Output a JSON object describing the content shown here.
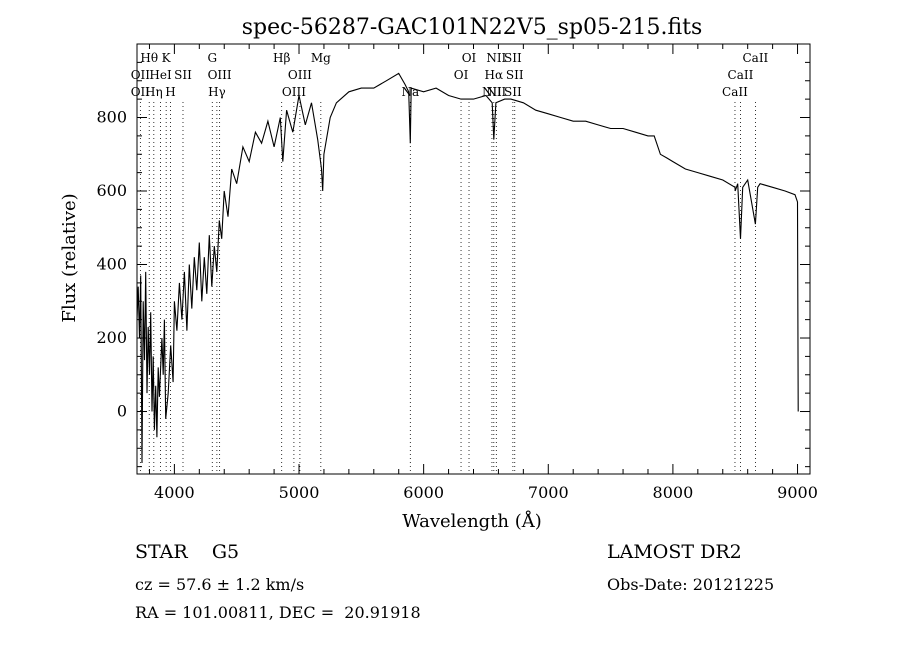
{
  "chart_data": {
    "type": "line",
    "title": "spec-56287-GAC101N22V5_sp05-215.fits",
    "xlabel": "Wavelength (Å)",
    "ylabel": "Flux (relative)",
    "xlim": [
      3700,
      9100
    ],
    "ylim": [
      -170,
      1000
    ],
    "xticks": [
      4000,
      5000,
      6000,
      7000,
      8000,
      9000
    ],
    "yticks": [
      0,
      200,
      400,
      600,
      800
    ],
    "series": [
      {
        "values": [
          [
            3700,
            250
          ],
          [
            3710,
            340
          ],
          [
            3720,
            200
          ],
          [
            3730,
            370
          ],
          [
            3740,
            -140
          ],
          [
            3750,
            300
          ],
          [
            3760,
            140
          ],
          [
            3770,
            380
          ],
          [
            3780,
            50
          ],
          [
            3790,
            230
          ],
          [
            3800,
            100
          ],
          [
            3810,
            270
          ],
          [
            3820,
            0
          ],
          [
            3830,
            150
          ],
          [
            3840,
            -50
          ],
          [
            3850,
            70
          ],
          [
            3860,
            -70
          ],
          [
            3870,
            120
          ],
          [
            3880,
            40
          ],
          [
            3900,
            200
          ],
          [
            3910,
            100
          ],
          [
            3920,
            250
          ],
          [
            3930,
            -20
          ],
          [
            3950,
            50
          ],
          [
            3970,
            180
          ],
          [
            3990,
            80
          ],
          [
            4000,
            300
          ],
          [
            4020,
            220
          ],
          [
            4040,
            350
          ],
          [
            4060,
            250
          ],
          [
            4080,
            380
          ],
          [
            4100,
            220
          ],
          [
            4120,
            400
          ],
          [
            4140,
            280
          ],
          [
            4160,
            420
          ],
          [
            4180,
            330
          ],
          [
            4200,
            460
          ],
          [
            4220,
            300
          ],
          [
            4240,
            420
          ],
          [
            4260,
            320
          ],
          [
            4280,
            480
          ],
          [
            4300,
            340
          ],
          [
            4320,
            450
          ],
          [
            4340,
            380
          ],
          [
            4360,
            520
          ],
          [
            4380,
            470
          ],
          [
            4400,
            600
          ],
          [
            4430,
            530
          ],
          [
            4460,
            660
          ],
          [
            4500,
            620
          ],
          [
            4550,
            720
          ],
          [
            4600,
            680
          ],
          [
            4650,
            760
          ],
          [
            4700,
            730
          ],
          [
            4750,
            790
          ],
          [
            4800,
            720
          ],
          [
            4850,
            800
          ],
          [
            4870,
            680
          ],
          [
            4900,
            820
          ],
          [
            4950,
            760
          ],
          [
            5000,
            860
          ],
          [
            5050,
            780
          ],
          [
            5100,
            840
          ],
          [
            5150,
            740
          ],
          [
            5180,
            660
          ],
          [
            5190,
            600
          ],
          [
            5200,
            700
          ],
          [
            5250,
            800
          ],
          [
            5300,
            840
          ],
          [
            5400,
            870
          ],
          [
            5500,
            880
          ],
          [
            5600,
            880
          ],
          [
            5700,
            900
          ],
          [
            5800,
            920
          ],
          [
            5850,
            890
          ],
          [
            5880,
            870
          ],
          [
            5893,
            730
          ],
          [
            5900,
            880
          ],
          [
            6000,
            870
          ],
          [
            6100,
            880
          ],
          [
            6200,
            860
          ],
          [
            6300,
            850
          ],
          [
            6400,
            850
          ],
          [
            6500,
            860
          ],
          [
            6550,
            840
          ],
          [
            6563,
            740
          ],
          [
            6580,
            840
          ],
          [
            6650,
            850
          ],
          [
            6700,
            850
          ],
          [
            6800,
            840
          ],
          [
            6900,
            820
          ],
          [
            7000,
            810
          ],
          [
            7100,
            800
          ],
          [
            7200,
            790
          ],
          [
            7300,
            790
          ],
          [
            7400,
            780
          ],
          [
            7500,
            770
          ],
          [
            7600,
            770
          ],
          [
            7700,
            760
          ],
          [
            7800,
            750
          ],
          [
            7850,
            750
          ],
          [
            7900,
            700
          ],
          [
            7950,
            690
          ],
          [
            8000,
            680
          ],
          [
            8100,
            660
          ],
          [
            8200,
            650
          ],
          [
            8300,
            640
          ],
          [
            8400,
            630
          ],
          [
            8498,
            610
          ],
          [
            8500,
            600
          ],
          [
            8520,
            620
          ],
          [
            8542,
            470
          ],
          [
            8560,
            610
          ],
          [
            8600,
            630
          ],
          [
            8662,
            510
          ],
          [
            8680,
            610
          ],
          [
            8700,
            620
          ],
          [
            8800,
            610
          ],
          [
            8900,
            600
          ],
          [
            8980,
            590
          ],
          [
            9000,
            570
          ],
          [
            9005,
            0
          ]
        ]
      }
    ],
    "lines": [
      {
        "label": "Hθ",
        "x": 3798,
        "row": 0
      },
      {
        "label": "K",
        "x": 3934,
        "row": 0
      },
      {
        "label": "OII",
        "x": 3727,
        "row": 1
      },
      {
        "label": "HeI",
        "x": 3889,
        "row": 1
      },
      {
        "label": "SII",
        "x": 4069,
        "row": 1
      },
      {
        "label": "OII",
        "x": 3727,
        "row": 2
      },
      {
        "label": "Hη",
        "x": 3835,
        "row": 2
      },
      {
        "label": "H",
        "x": 3969,
        "row": 2
      },
      {
        "label": "G",
        "x": 4304,
        "row": 0
      },
      {
        "label": "OIII",
        "x": 4363,
        "row": 1
      },
      {
        "label": "Hγ",
        "x": 4341,
        "row": 2
      },
      {
        "label": "Hβ",
        "x": 4861,
        "row": 0
      },
      {
        "label": "Mg",
        "x": 5175,
        "row": 0
      },
      {
        "label": "OIII",
        "x": 5007,
        "row": 1
      },
      {
        "label": "OIII",
        "x": 4959,
        "row": 2
      },
      {
        "label": "Na",
        "x": 5893,
        "row": 2
      },
      {
        "label": "OI",
        "x": 6364,
        "row": 0
      },
      {
        "label": "OI",
        "x": 6300,
        "row": 1
      },
      {
        "label": "NII",
        "x": 6583,
        "row": 0
      },
      {
        "label": "SII",
        "x": 6716,
        "row": 0
      },
      {
        "label": "Hα",
        "x": 6563,
        "row": 1
      },
      {
        "label": "SII",
        "x": 6731,
        "row": 1
      },
      {
        "label": "NII",
        "x": 6548,
        "row": 2
      },
      {
        "label": "NII",
        "x": 6583,
        "row": 2
      },
      {
        "label": "SII",
        "x": 6716,
        "row": 2
      },
      {
        "label": "CaII",
        "x": 8662,
        "row": 0
      },
      {
        "label": "CaII",
        "x": 8542,
        "row": 1
      },
      {
        "label": "CaII",
        "x": 8498,
        "row": 2
      }
    ]
  },
  "info": {
    "class": "STAR    G5",
    "survey": "LAMOST DR2",
    "cz": "cz = 57.6 ± 1.2 km/s",
    "obs_date": "Obs-Date: 20121225",
    "coords": "RA = 101.00811, DEC =  20.91918"
  }
}
